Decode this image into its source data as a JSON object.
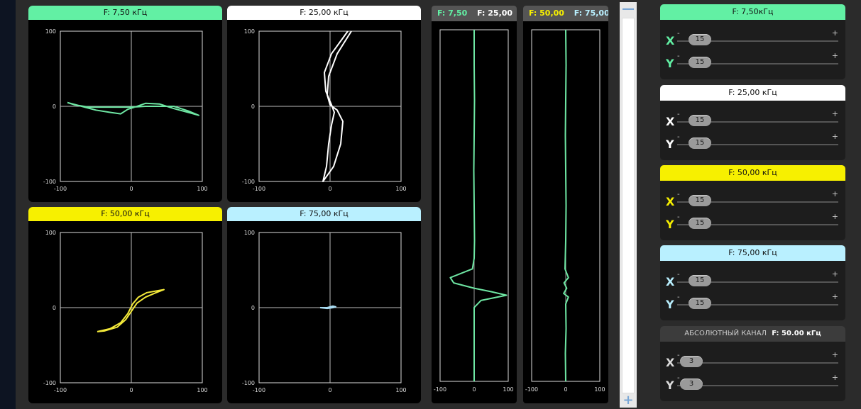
{
  "colors": {
    "green": "#62f0a4",
    "white": "#ffffff",
    "yellow": "#f7f000",
    "cyan": "#b9f0ff",
    "trace_green": "#6ee6a3",
    "trace_white": "#ffffff",
    "trace_yellow": "#f3e93a",
    "trace_cyan": "#a9dcf2"
  },
  "panels": [
    {
      "title": "F: 7,50 кГц",
      "header_color": "green",
      "trace_color": "trace_green",
      "ticks": {
        "y_top": "100",
        "y_mid": "0",
        "y_bottom": "-100",
        "x_left": "-100",
        "x_mid": "0",
        "x_right": "100"
      },
      "trace": [
        [
          -90,
          5
        ],
        [
          -70,
          0
        ],
        [
          -50,
          -5
        ],
        [
          -30,
          -8
        ],
        [
          -15,
          -10
        ],
        [
          -5,
          -4
        ],
        [
          5,
          -1
        ],
        [
          20,
          4
        ],
        [
          40,
          3
        ],
        [
          60,
          -3
        ],
        [
          80,
          -8
        ],
        [
          95,
          -12
        ],
        [
          80,
          -6
        ],
        [
          60,
          0
        ],
        [
          40,
          0
        ],
        [
          20,
          0
        ],
        [
          0,
          -1
        ],
        [
          -20,
          -1
        ],
        [
          -40,
          -1
        ],
        [
          -60,
          -1
        ],
        [
          -80,
          2
        ],
        [
          -90,
          5
        ]
      ]
    },
    {
      "title": "F: 25,00 кГц",
      "header_color": "white",
      "trace_color": "trace_white",
      "ticks": {
        "y_top": "100",
        "y_mid": "0",
        "y_bottom": "-100",
        "x_left": "-100",
        "x_mid": "0",
        "x_right": "100"
      },
      "trace": [
        [
          30,
          100
        ],
        [
          10,
          70
        ],
        [
          -2,
          40
        ],
        [
          -4,
          15
        ],
        [
          0,
          2
        ],
        [
          10,
          -5
        ],
        [
          18,
          -20
        ],
        [
          15,
          -50
        ],
        [
          5,
          -80
        ],
        [
          -10,
          -100
        ],
        [
          -5,
          -80
        ],
        [
          -2,
          -50
        ],
        [
          2,
          -25
        ],
        [
          6,
          -8
        ],
        [
          2,
          2
        ],
        [
          -6,
          20
        ],
        [
          -8,
          45
        ],
        [
          2,
          70
        ],
        [
          25,
          100
        ]
      ]
    },
    {
      "title": "F: 50,00 кГц",
      "header_color": "yellow",
      "trace_color": "trace_yellow",
      "ticks": {
        "y_top": "100",
        "y_mid": "0",
        "y_bottom": "-100",
        "x_left": "-100",
        "x_mid": "0",
        "x_right": "100"
      },
      "trace": [
        [
          -48,
          -32
        ],
        [
          -30,
          -28
        ],
        [
          -15,
          -20
        ],
        [
          -5,
          -8
        ],
        [
          2,
          5
        ],
        [
          10,
          14
        ],
        [
          22,
          20
        ],
        [
          40,
          23
        ],
        [
          46,
          24
        ],
        [
          35,
          20
        ],
        [
          20,
          14
        ],
        [
          8,
          6
        ],
        [
          0,
          -5
        ],
        [
          -8,
          -16
        ],
        [
          -20,
          -26
        ],
        [
          -38,
          -31
        ],
        [
          -48,
          -32
        ]
      ]
    },
    {
      "title": "F: 75,00 кГц",
      "header_color": "cyan",
      "trace_color": "trace_cyan",
      "ticks": {
        "y_top": "100",
        "y_mid": "0",
        "y_bottom": "-100",
        "x_left": "-100",
        "x_mid": "0",
        "x_right": "100"
      },
      "trace": [
        [
          -14,
          0
        ],
        [
          -4,
          0
        ],
        [
          0,
          1
        ],
        [
          4,
          2
        ],
        [
          8,
          1
        ],
        [
          4,
          0
        ],
        [
          -4,
          -1
        ],
        [
          -14,
          0
        ]
      ]
    }
  ],
  "strips": [
    {
      "label_a": "F: 7,50",
      "label_a_color": "green",
      "label_b": "F: 25,00",
      "label_b_color": "white",
      "ticks": {
        "left": "-100",
        "mid": "0",
        "right": "100"
      },
      "trace_color": "trace_green",
      "trace": [
        [
          0,
          0
        ],
        [
          0,
          0.1
        ],
        [
          1,
          0.2
        ],
        [
          0,
          0.3
        ],
        [
          -1,
          0.4
        ],
        [
          0,
          0.5
        ],
        [
          1,
          0.6
        ],
        [
          0,
          0.65
        ],
        [
          -5,
          0.68
        ],
        [
          -70,
          0.705
        ],
        [
          -60,
          0.72
        ],
        [
          0,
          0.735
        ],
        [
          50,
          0.745
        ],
        [
          95,
          0.755
        ],
        [
          20,
          0.77
        ],
        [
          0,
          0.79
        ],
        [
          0,
          0.85
        ],
        [
          0,
          0.9
        ],
        [
          0,
          1
        ]
      ]
    },
    {
      "label_a": "F: 50,00",
      "label_a_color": "yellow",
      "label_b": "F: 75,00",
      "label_b_color": "cyan",
      "ticks": {
        "left": "-100",
        "mid": "0",
        "right": "100"
      },
      "trace_color": "trace_green",
      "trace": [
        [
          0,
          0
        ],
        [
          1,
          0.1
        ],
        [
          0,
          0.2
        ],
        [
          -1,
          0.3
        ],
        [
          0,
          0.4
        ],
        [
          1,
          0.5
        ],
        [
          0,
          0.6
        ],
        [
          -2,
          0.68
        ],
        [
          8,
          0.705
        ],
        [
          -5,
          0.72
        ],
        [
          3,
          0.735
        ],
        [
          -6,
          0.75
        ],
        [
          8,
          0.76
        ],
        [
          0,
          0.78
        ],
        [
          1,
          0.85
        ],
        [
          -1,
          0.92
        ],
        [
          0,
          1
        ]
      ]
    }
  ],
  "controls": [
    {
      "title": "F: 7,50кГц",
      "header_color": "green",
      "rows": [
        {
          "axis": "X",
          "value": "15"
        },
        {
          "axis": "Y",
          "value": "15"
        }
      ]
    },
    {
      "title": "F: 25,00 кГц",
      "header_color": "white",
      "rows": [
        {
          "axis": "X",
          "value": "15"
        },
        {
          "axis": "Y",
          "value": "15"
        }
      ]
    },
    {
      "title": "F: 50,00 кГц",
      "header_color": "yellow",
      "rows": [
        {
          "axis": "X",
          "value": "15"
        },
        {
          "axis": "Y",
          "value": "15"
        }
      ]
    },
    {
      "title": "F: 75,00 кГц",
      "header_color": "cyan",
      "rows": [
        {
          "axis": "X",
          "value": "15"
        },
        {
          "axis": "Y",
          "value": "15"
        }
      ]
    }
  ],
  "absolute": {
    "title": "АБСОЛЮТНЫЙ КАНАЛ",
    "freq": "F: 50.00 кГц",
    "rows": [
      {
        "axis": "X",
        "value": "3"
      },
      {
        "axis": "Y",
        "value": "3"
      }
    ]
  },
  "slider_marks": {
    "minus": "-",
    "plus": "+"
  },
  "scroll": {
    "up": "—",
    "down": "+"
  }
}
